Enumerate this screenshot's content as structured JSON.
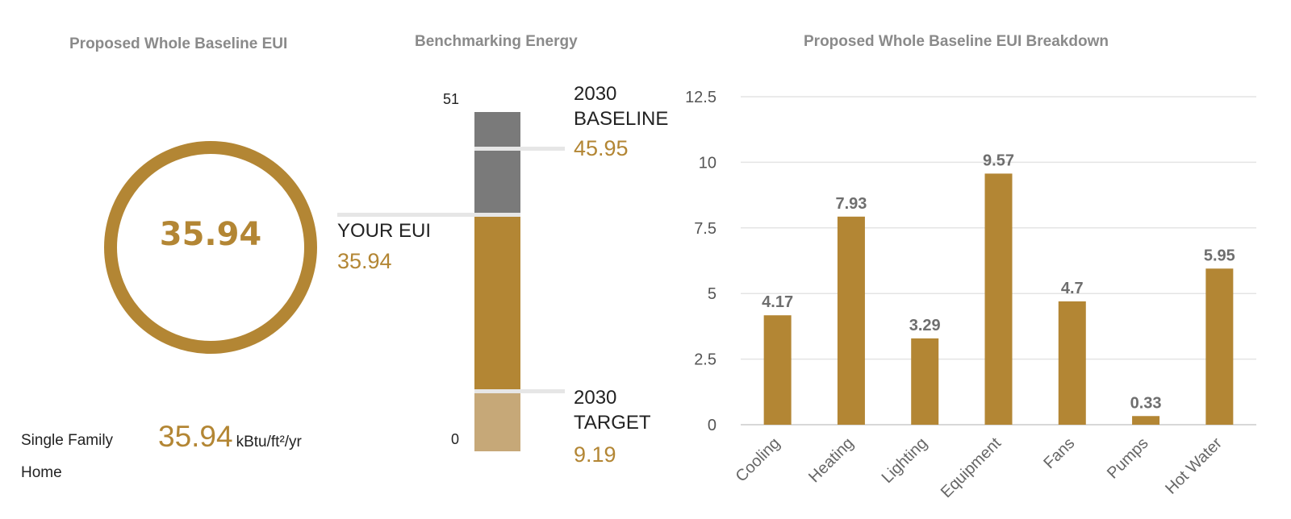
{
  "panels": {
    "eui": {
      "title": "Proposed Whole Baseline EUI",
      "value": "35.94",
      "building_type": "Single Family Home",
      "big_value": "35.94",
      "unit": "kBtu/ft²/yr",
      "colors": {
        "ring": "#b38634"
      }
    },
    "benchmark": {
      "title": "Benchmarking Energy",
      "scale_max": "51",
      "scale_min": "0",
      "baseline": {
        "label_line1": "2030",
        "label_line2": "BASELINE",
        "value": "45.95"
      },
      "your_eui": {
        "label": "YOUR EUI",
        "value": "35.94"
      },
      "target": {
        "label_line1": "2030",
        "label_line2": "TARGET",
        "value": "9.19"
      },
      "colors": {
        "baseline": "#7a7a7a",
        "eui": "#b38634",
        "target": "#c6a878",
        "accent": "#b38634"
      }
    },
    "breakdown": {
      "title": "Proposed Whole Baseline EUI Breakdown"
    }
  },
  "chart_data": [
    {
      "type": "bar",
      "title": "Benchmarking Energy",
      "ylim": [
        0,
        51
      ],
      "series": [
        {
          "name": "2030 BASELINE",
          "values": [
            45.95
          ]
        },
        {
          "name": "YOUR EUI",
          "values": [
            35.94
          ]
        },
        {
          "name": "2030 TARGET",
          "values": [
            9.19
          ]
        }
      ]
    },
    {
      "type": "bar",
      "title": "Proposed Whole Baseline EUI Breakdown",
      "categories": [
        "Cooling",
        "Heating",
        "Lighting",
        "Equipment",
        "Fans",
        "Pumps",
        "Hot Water"
      ],
      "values": [
        4.17,
        7.93,
        3.29,
        9.57,
        4.7,
        0.33,
        5.95
      ],
      "ylim": [
        0,
        12.5
      ],
      "yticks": [
        "0",
        "2.5",
        "5",
        "7.5",
        "10",
        "12.5"
      ],
      "grid": true,
      "color": "#b38634"
    }
  ]
}
